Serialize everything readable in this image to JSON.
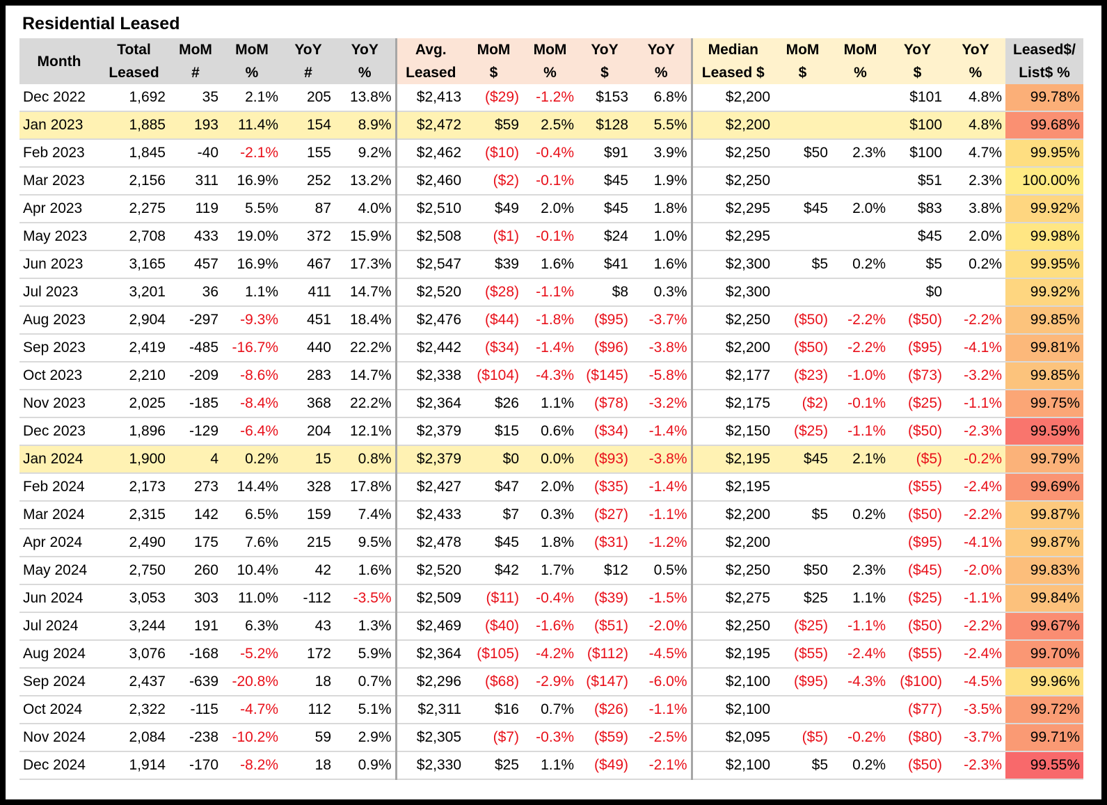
{
  "title": "Residential Leased",
  "table": {
    "header": [
      [
        "Month"
      ],
      [
        "Total",
        "Leased"
      ],
      [
        "MoM",
        "#"
      ],
      [
        "MoM",
        "%"
      ],
      [
        "YoY",
        "#"
      ],
      [
        "YoY",
        "%"
      ],
      [
        "Avg.",
        "Leased"
      ],
      [
        "MoM",
        "$"
      ],
      [
        "MoM",
        "%"
      ],
      [
        "YoY",
        "$"
      ],
      [
        "YoY",
        "%"
      ],
      [
        "Median",
        "Leased $"
      ],
      [
        "MoM",
        "$"
      ],
      [
        "MoM",
        "%"
      ],
      [
        "YoY",
        "$"
      ],
      [
        "YoY",
        "%"
      ],
      [
        "Leased$/",
        "List$ %"
      ]
    ],
    "highlight_rows": [
      1,
      13
    ],
    "rows": [
      [
        "Dec 2022",
        "1,692",
        "35",
        "2.1%",
        "205",
        "13.8%",
        "$2,413",
        "($29)",
        "-1.2%",
        "$153",
        "6.8%",
        "$2,200",
        null,
        null,
        "$101",
        "4.8%",
        "99.78%"
      ],
      [
        "Jan 2023",
        "1,885",
        "193",
        "11.4%",
        "154",
        "8.9%",
        "$2,472",
        "$59",
        "2.5%",
        "$128",
        "5.5%",
        "$2,200",
        null,
        null,
        "$100",
        "4.8%",
        "99.68%"
      ],
      [
        "Feb 2023",
        "1,845",
        "-40",
        "-2.1%",
        "155",
        "9.2%",
        "$2,462",
        "($10)",
        "-0.4%",
        "$91",
        "3.9%",
        "$2,250",
        "$50",
        "2.3%",
        "$100",
        "4.7%",
        "99.95%"
      ],
      [
        "Mar 2023",
        "2,156",
        "311",
        "16.9%",
        "252",
        "13.2%",
        "$2,460",
        "($2)",
        "-0.1%",
        "$45",
        "1.9%",
        "$2,250",
        null,
        null,
        "$51",
        "2.3%",
        "100.00%"
      ],
      [
        "Apr 2023",
        "2,275",
        "119",
        "5.5%",
        "87",
        "4.0%",
        "$2,510",
        "$49",
        "2.0%",
        "$45",
        "1.8%",
        "$2,295",
        "$45",
        "2.0%",
        "$83",
        "3.8%",
        "99.92%"
      ],
      [
        "May 2023",
        "2,708",
        "433",
        "19.0%",
        "372",
        "15.9%",
        "$2,508",
        "($1)",
        "-0.1%",
        "$24",
        "1.0%",
        "$2,295",
        null,
        null,
        "$45",
        "2.0%",
        "99.98%"
      ],
      [
        "Jun 2023",
        "3,165",
        "457",
        "16.9%",
        "467",
        "17.3%",
        "$2,547",
        "$39",
        "1.6%",
        "$41",
        "1.6%",
        "$2,300",
        "$5",
        "0.2%",
        "$5",
        "0.2%",
        "99.95%"
      ],
      [
        "Jul 2023",
        "3,201",
        "36",
        "1.1%",
        "411",
        "14.7%",
        "$2,520",
        "($28)",
        "-1.1%",
        "$8",
        "0.3%",
        "$2,300",
        null,
        null,
        "$0",
        null,
        "99.92%"
      ],
      [
        "Aug 2023",
        "2,904",
        "-297",
        "-9.3%",
        "451",
        "18.4%",
        "$2,476",
        "($44)",
        "-1.8%",
        "($95)",
        "-3.7%",
        "$2,250",
        "($50)",
        "-2.2%",
        "($50)",
        "-2.2%",
        "99.85%"
      ],
      [
        "Sep 2023",
        "2,419",
        "-485",
        "-16.7%",
        "440",
        "22.2%",
        "$2,442",
        "($34)",
        "-1.4%",
        "($96)",
        "-3.8%",
        "$2,200",
        "($50)",
        "-2.2%",
        "($95)",
        "-4.1%",
        "99.81%"
      ],
      [
        "Oct 2023",
        "2,210",
        "-209",
        "-8.6%",
        "283",
        "14.7%",
        "$2,338",
        "($104)",
        "-4.3%",
        "($145)",
        "-5.8%",
        "$2,177",
        "($23)",
        "-1.0%",
        "($73)",
        "-3.2%",
        "99.85%"
      ],
      [
        "Nov 2023",
        "2,025",
        "-185",
        "-8.4%",
        "368",
        "22.2%",
        "$2,364",
        "$26",
        "1.1%",
        "($78)",
        "-3.2%",
        "$2,175",
        "($2)",
        "-0.1%",
        "($25)",
        "-1.1%",
        "99.75%"
      ],
      [
        "Dec 2023",
        "1,896",
        "-129",
        "-6.4%",
        "204",
        "12.1%",
        "$2,379",
        "$15",
        "0.6%",
        "($34)",
        "-1.4%",
        "$2,150",
        "($25)",
        "-1.1%",
        "($50)",
        "-2.3%",
        "99.59%"
      ],
      [
        "Jan 2024",
        "1,900",
        "4",
        "0.2%",
        "15",
        "0.8%",
        "$2,379",
        "$0",
        "0.0%",
        "($93)",
        "-3.8%",
        "$2,195",
        "$45",
        "2.1%",
        "($5)",
        "-0.2%",
        "99.79%"
      ],
      [
        "Feb 2024",
        "2,173",
        "273",
        "14.4%",
        "328",
        "17.8%",
        "$2,427",
        "$47",
        "2.0%",
        "($35)",
        "-1.4%",
        "$2,195",
        null,
        null,
        "($55)",
        "-2.4%",
        "99.69%"
      ],
      [
        "Mar 2024",
        "2,315",
        "142",
        "6.5%",
        "159",
        "7.4%",
        "$2,433",
        "$7",
        "0.3%",
        "($27)",
        "-1.1%",
        "$2,200",
        "$5",
        "0.2%",
        "($50)",
        "-2.2%",
        "99.87%"
      ],
      [
        "Apr 2024",
        "2,490",
        "175",
        "7.6%",
        "215",
        "9.5%",
        "$2,478",
        "$45",
        "1.8%",
        "($31)",
        "-1.2%",
        "$2,200",
        null,
        null,
        "($95)",
        "-4.1%",
        "99.87%"
      ],
      [
        "May 2024",
        "2,750",
        "260",
        "10.4%",
        "42",
        "1.6%",
        "$2,520",
        "$42",
        "1.7%",
        "$12",
        "0.5%",
        "$2,250",
        "$50",
        "2.3%",
        "($45)",
        "-2.0%",
        "99.83%"
      ],
      [
        "Jun 2024",
        "3,053",
        "303",
        "11.0%",
        "-112",
        "-3.5%",
        "$2,509",
        "($11)",
        "-0.4%",
        "($39)",
        "-1.5%",
        "$2,275",
        "$25",
        "1.1%",
        "($25)",
        "-1.1%",
        "99.84%"
      ],
      [
        "Jul 2024",
        "3,244",
        "191",
        "6.3%",
        "43",
        "1.3%",
        "$2,469",
        "($40)",
        "-1.6%",
        "($51)",
        "-2.0%",
        "$2,250",
        "($25)",
        "-1.1%",
        "($50)",
        "-2.2%",
        "99.67%"
      ],
      [
        "Aug 2024",
        "3,076",
        "-168",
        "-5.2%",
        "172",
        "5.9%",
        "$2,364",
        "($105)",
        "-4.2%",
        "($112)",
        "-4.5%",
        "$2,195",
        "($55)",
        "-2.4%",
        "($55)",
        "-2.4%",
        "99.70%"
      ],
      [
        "Sep 2024",
        "2,437",
        "-639",
        "-20.8%",
        "18",
        "0.7%",
        "$2,296",
        "($68)",
        "-2.9%",
        "($147)",
        "-6.0%",
        "$2,100",
        "($95)",
        "-4.3%",
        "($100)",
        "-4.5%",
        "99.96%"
      ],
      [
        "Oct 2024",
        "2,322",
        "-115",
        "-4.7%",
        "112",
        "5.1%",
        "$2,311",
        "$16",
        "0.7%",
        "($26)",
        "-1.1%",
        "$2,100",
        null,
        null,
        "($77)",
        "-3.5%",
        "99.72%"
      ],
      [
        "Nov 2024",
        "2,084",
        "-238",
        "-10.2%",
        "59",
        "2.9%",
        "$2,305",
        "($7)",
        "-0.3%",
        "($59)",
        "-2.5%",
        "$2,095",
        "($5)",
        "-0.2%",
        "($80)",
        "-3.7%",
        "99.71%"
      ],
      [
        "Dec 2024",
        "1,914",
        "-170",
        "-8.2%",
        "18",
        "0.9%",
        "$2,330",
        "$25",
        "1.1%",
        "($49)",
        "-2.1%",
        "$2,100",
        "$5",
        "0.2%",
        "($50)",
        "-2.3%",
        "99.55%"
      ]
    ]
  }
}
